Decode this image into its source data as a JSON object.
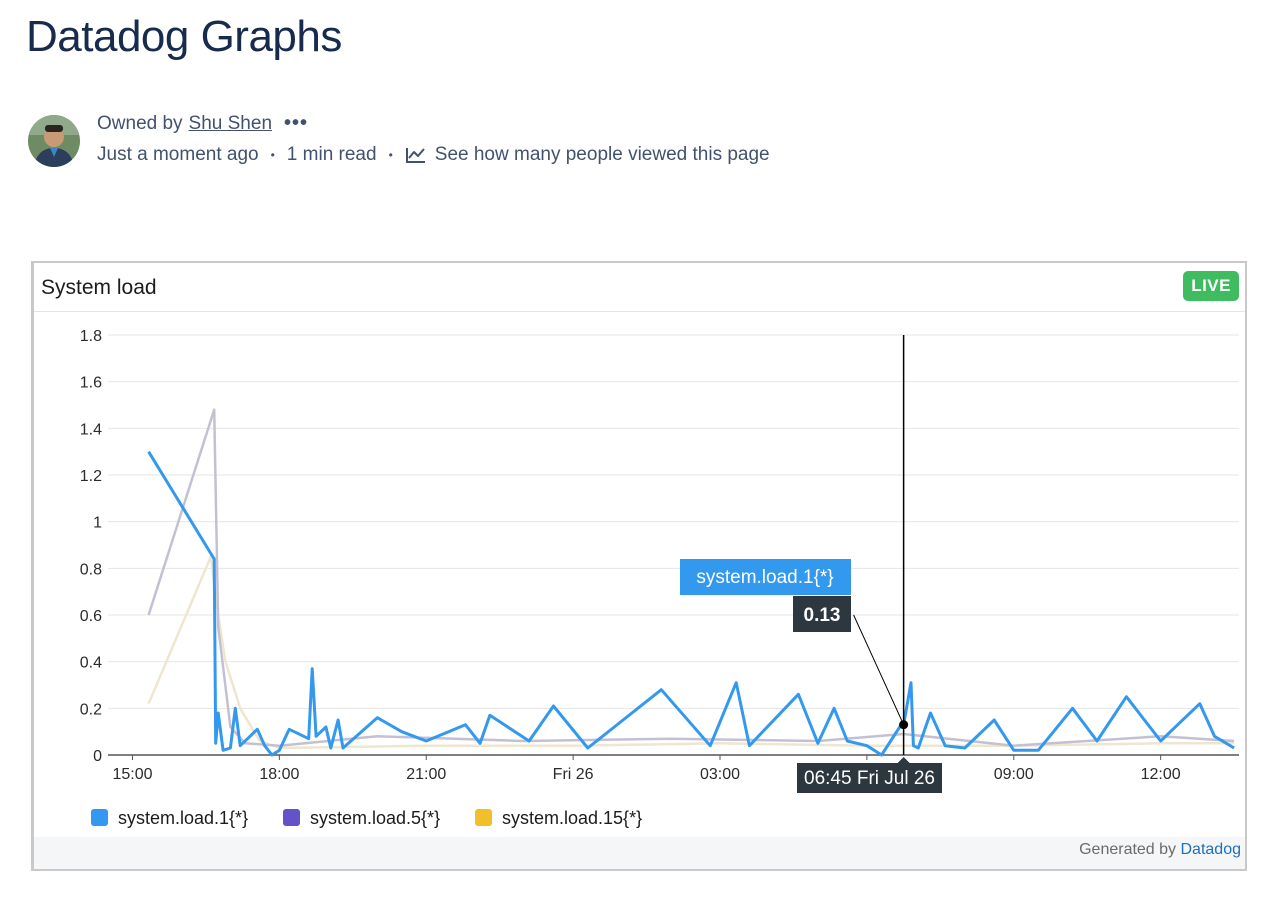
{
  "page": {
    "title": "Datadog Graphs"
  },
  "byline": {
    "owned_by": "Owned by",
    "owner": "Shu Shen",
    "more": "•••",
    "updated": "Just a moment ago",
    "read_time": "1 min read",
    "views_link": "See how many people viewed this page",
    "bullet": "•"
  },
  "widget": {
    "title": "System load",
    "live_badge": "LIVE",
    "generated_by": "Generated by",
    "generated_link": "Datadog",
    "tooltip_series": "system.load.1{*}",
    "tooltip_value": "0.13",
    "cursor_label": "06:45 Fri Jul 26"
  },
  "colors": {
    "load1": "#3399ee",
    "load5": "#6253c9",
    "load15": "#f0c02a",
    "load5_faded": "#c4c0d4",
    "load15_faded": "#efe6cf",
    "live": "#3fbc5f"
  },
  "chart_data": {
    "type": "line",
    "title": "System load",
    "xlabel": "",
    "ylabel": "",
    "ylim": [
      0,
      1.8
    ],
    "yticks": [
      "0",
      "0.2",
      "0.4",
      "0.6",
      "0.8",
      "1",
      "1.2",
      "1.4",
      "1.6",
      "1.8"
    ],
    "xticks": [
      "15:00",
      "18:00",
      "21:00",
      "Fri 26",
      "03:00",
      "06:00",
      "09:00",
      "12:00"
    ],
    "xtick_hours": [
      15,
      18,
      21,
      24,
      27,
      30,
      33,
      36
    ],
    "xlim_hours": [
      14.5,
      37.6
    ],
    "grid": true,
    "legend_position": "bottom-left",
    "cursor": {
      "x_hours": 30.75,
      "y": 0.13
    },
    "series": [
      {
        "name": "system.load.1{*}",
        "color": "#3399ee",
        "x_hours": [
          15.33,
          16.67,
          16.7,
          16.75,
          16.85,
          17.0,
          17.1,
          17.2,
          17.4,
          17.55,
          17.7,
          17.85,
          18.0,
          18.2,
          18.6,
          18.67,
          18.75,
          18.95,
          19.05,
          19.2,
          19.3,
          20.0,
          20.5,
          21.0,
          21.8,
          22.1,
          22.3,
          23.1,
          23.6,
          24.3,
          25.8,
          26.8,
          27.33,
          27.6,
          28.6,
          29.0,
          29.33,
          29.6,
          30.0,
          30.3,
          30.7,
          30.75,
          30.9,
          30.95,
          31.05,
          31.3,
          31.6,
          32.0,
          32.6,
          33.0,
          33.5,
          34.2,
          34.7,
          35.3,
          36.0,
          36.4,
          36.8,
          37.1,
          37.5
        ],
        "values": [
          1.3,
          0.84,
          0.05,
          0.18,
          0.02,
          0.03,
          0.2,
          0.04,
          0.08,
          0.11,
          0.04,
          0.0,
          0.02,
          0.11,
          0.07,
          0.37,
          0.08,
          0.12,
          0.03,
          0.15,
          0.03,
          0.16,
          0.1,
          0.06,
          0.13,
          0.05,
          0.17,
          0.06,
          0.21,
          0.03,
          0.28,
          0.04,
          0.31,
          0.04,
          0.26,
          0.05,
          0.2,
          0.06,
          0.04,
          0.0,
          0.13,
          0.13,
          0.31,
          0.04,
          0.03,
          0.18,
          0.04,
          0.03,
          0.15,
          0.02,
          0.02,
          0.2,
          0.06,
          0.25,
          0.06,
          0.14,
          0.22,
          0.08,
          0.03
        ]
      },
      {
        "name": "system.load.5{*}",
        "color": "#6253c9",
        "x_hours": [
          15.33,
          16.67,
          16.75,
          17.0,
          17.3,
          18.0,
          20.0,
          23.0,
          26.0,
          29.0,
          30.75,
          33.0,
          36.0,
          37.5
        ],
        "values": [
          0.6,
          1.48,
          0.55,
          0.12,
          0.05,
          0.04,
          0.08,
          0.06,
          0.07,
          0.06,
          0.09,
          0.04,
          0.08,
          0.06
        ]
      },
      {
        "name": "system.load.15{*}",
        "color": "#f0c02a",
        "x_hours": [
          15.33,
          16.6,
          16.75,
          16.9,
          17.2,
          17.6,
          18.0,
          21.0,
          24.0,
          27.0,
          30.0,
          33.0,
          36.0,
          37.5
        ],
        "values": [
          0.22,
          0.85,
          0.6,
          0.4,
          0.2,
          0.06,
          0.03,
          0.04,
          0.04,
          0.05,
          0.04,
          0.04,
          0.05,
          0.05
        ]
      }
    ]
  }
}
